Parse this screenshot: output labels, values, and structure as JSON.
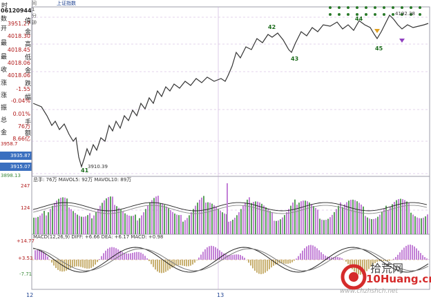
{
  "window": {
    "title_left": "时",
    "period_label": "间1分钟",
    "index_name": "上证指数",
    "code": "06120944"
  },
  "sidebar": {
    "rows": [
      {
        "key": "数",
        "value": "",
        "sub": "3951.27"
      },
      {
        "key": "开",
        "value": "值"
      },
      {
        "key": "最",
        "value": "4018.30"
      },
      {
        "key": "最",
        "value": "4018.45"
      },
      {
        "key": "收",
        "value": "4018.06"
      },
      {
        "key": "涨",
        "value": "4018.06"
      },
      {
        "key": "涨",
        "value": "-1.55"
      },
      {
        "key": "振",
        "value": "-0.04%"
      },
      {
        "key": "总",
        "value": "0.01%"
      },
      {
        "key": "金",
        "value": "76万"
      },
      {
        "key": "",
        "value": "8.66亿"
      }
    ],
    "stack_labels": [
      "值",
      "金",
      "高",
      "低",
      "金",
      "跌",
      "幅",
      "手",
      "额"
    ],
    "price_boxes": [
      "3935.87",
      "3915.07"
    ],
    "bottom_price": "3898.13",
    "top_price_tick": "3958.7"
  },
  "chart_data": [
    {
      "type": "line",
      "title": "",
      "annotations": [
        {
          "label": "41",
          "note": "3910.39"
        },
        {
          "label": "42"
        },
        {
          "label": "43"
        },
        {
          "label": "44"
        },
        {
          "label": "45"
        },
        {
          "label": "",
          "note": "4192.38"
        }
      ],
      "points_note": "intraday 1-minute index line",
      "y_ticks_left": [
        "3958.7",
        "3935.87",
        "3915.07",
        "3898.13"
      ]
    },
    {
      "type": "bar",
      "legend": "总手: 76万  MAVOL5: 92万  MAVOL10: 89万",
      "y_ticks": [
        "247",
        "124"
      ]
    },
    {
      "type": "bar",
      "legend": "MACD(12,26,9)  DIFF: +6.66  DEA: +6.17  MACD: +0.98",
      "y_ticks": [
        "+14.77",
        "+3.53",
        "-7.71"
      ]
    }
  ],
  "x_ticks": [
    "12",
    "13"
  ],
  "watermark": {
    "brand": "10Huang.cn",
    "cn": "拾荒网",
    "url": "www.chzhshch.net"
  },
  "colors": {
    "up": "#b01616",
    "down": "#3a8a3a",
    "purple": "#c27fd6",
    "green": "#5aa05a",
    "grid": "#c8a8d8",
    "line": "#333333"
  }
}
